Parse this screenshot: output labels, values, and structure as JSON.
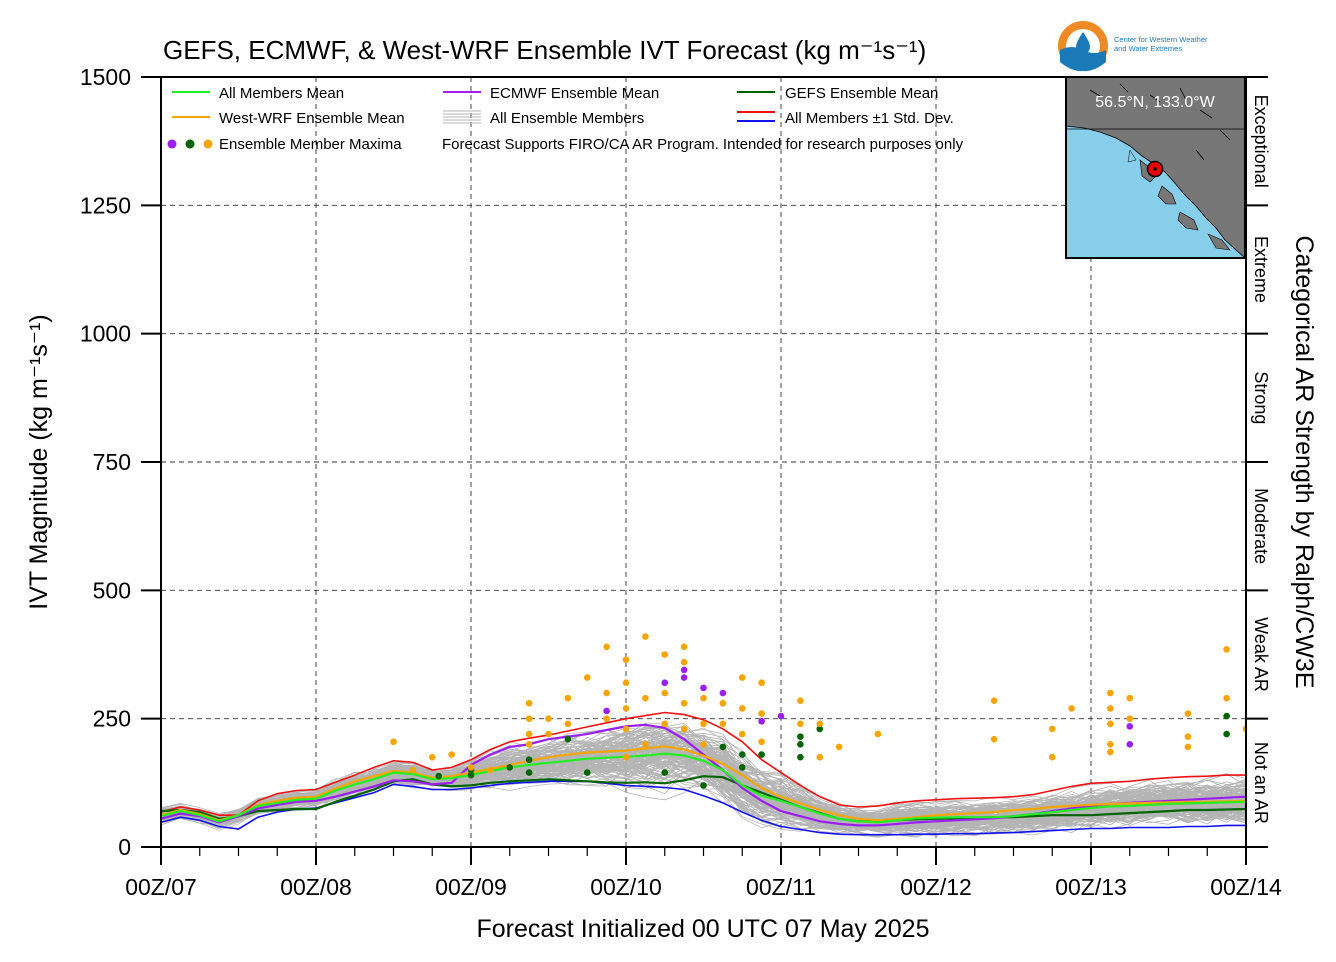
{
  "colors": {
    "all_mean": "#22ee22",
    "west_wrf": "#f5a400",
    "ecmwf": "#9b1ff0",
    "gefs": "#006400",
    "std_upper": "#ee1111",
    "std_lower": "#1111ee",
    "members": "#b4b4b4",
    "map_ocean": "#87ceeb",
    "map_land": "#777777",
    "logo_ring": "#f08a24",
    "logo_blue": "#1a7ab8"
  },
  "logo": {
    "line1": "Center for Western Weather",
    "line2": "and Water Extremes"
  },
  "map": {
    "location_label": "56.5°N, 133.0°W"
  },
  "legend": {
    "all_mean": "All Members Mean",
    "ecmwf": "ECMWF Ensemble Mean",
    "gefs": "GEFS Ensemble Mean",
    "west_wrf": "West-WRF Ensemble Mean",
    "members": "All Ensemble Members",
    "std": "All Members ±1 Std. Dev.",
    "maxima": "Ensemble Member Maxima",
    "note": "Forecast Supports FIRO/CA AR Program. Intended for research purposes only"
  },
  "chart_data": {
    "type": "line",
    "title": "GEFS, ECMWF, & West-WRF Ensemble IVT Forecast (kg m⁻¹s⁻¹)",
    "xlabel": "Forecast Initialized 00 UTC 07 May 2025",
    "ylabel": "IVT Magnitude (kg m⁻¹s⁻¹)",
    "right_label": "Categorical AR Strength by Ralph/CW3E",
    "xlim_hours": [
      0,
      168
    ],
    "ylim": [
      0,
      1500
    ],
    "x_tick_hours": [
      0,
      24,
      48,
      72,
      96,
      120,
      144,
      168
    ],
    "x_tick_labels": [
      "00Z/07",
      "00Z/08",
      "00Z/09",
      "00Z/10",
      "00Z/11",
      "00Z/12",
      "00Z/13",
      "00Z/14"
    ],
    "y_ticks": [
      0,
      250,
      500,
      750,
      1000,
      1250,
      1500
    ],
    "grid": true,
    "legend_position": "top-left",
    "categories": [
      {
        "label": "Not an AR",
        "range": [
          0,
          250
        ]
      },
      {
        "label": "Weak AR",
        "range": [
          250,
          500
        ]
      },
      {
        "label": "Moderate",
        "range": [
          500,
          750
        ]
      },
      {
        "label": "Strong",
        "range": [
          750,
          1000
        ]
      },
      {
        "label": "Extreme",
        "range": [
          1000,
          1250
        ]
      },
      {
        "label": "Exceptional",
        "range": [
          1250,
          1500
        ]
      }
    ],
    "x": [
      0,
      3,
      6,
      9,
      12,
      15,
      18,
      21,
      24,
      27,
      30,
      33,
      36,
      39,
      42,
      45,
      48,
      51,
      54,
      57,
      60,
      63,
      66,
      69,
      72,
      75,
      78,
      81,
      84,
      87,
      90,
      93,
      96,
      99,
      102,
      105,
      108,
      111,
      114,
      117,
      120,
      123,
      126,
      129,
      132,
      135,
      138,
      141,
      144,
      147,
      150,
      153,
      156,
      159,
      162,
      165,
      168
    ],
    "series": [
      {
        "name": "All Members Mean",
        "key": "all_mean",
        "values": [
          60,
          70,
          62,
          50,
          62,
          80,
          86,
          92,
          94,
          110,
          122,
          132,
          145,
          142,
          132,
          134,
          140,
          148,
          155,
          160,
          164,
          168,
          172,
          174,
          176,
          178,
          182,
          178,
          168,
          150,
          120,
          100,
          90,
          78,
          65,
          55,
          50,
          48,
          52,
          56,
          57,
          58,
          58,
          58,
          60,
          64,
          68,
          72,
          76,
          79,
          80,
          82,
          84,
          85,
          86,
          87,
          88
        ]
      },
      {
        "name": "West-WRF Ensemble Mean",
        "key": "west_wrf",
        "values": [
          62,
          72,
          64,
          52,
          62,
          82,
          90,
          96,
          98,
          114,
          128,
          138,
          148,
          145,
          135,
          138,
          145,
          152,
          160,
          168,
          175,
          180,
          184,
          186,
          188,
          192,
          196,
          190,
          178,
          162,
          140,
          115,
          98,
          85,
          72,
          62,
          55,
          52,
          55,
          58,
          62,
          64,
          66,
          68,
          72,
          74,
          78,
          80,
          82,
          84,
          85,
          86,
          87,
          88,
          88,
          89,
          90
        ]
      },
      {
        "name": "ECMWF Ensemble Mean",
        "key": "ecmwf",
        "values": [
          55,
          65,
          60,
          48,
          60,
          75,
          82,
          88,
          90,
          98,
          108,
          118,
          130,
          128,
          122,
          125,
          160,
          180,
          195,
          200,
          210,
          215,
          220,
          228,
          235,
          238,
          232,
          210,
          180,
          150,
          115,
          90,
          70,
          60,
          50,
          45,
          42,
          42,
          45,
          48,
          50,
          52,
          54,
          56,
          60,
          64,
          70,
          75,
          80,
          84,
          86,
          88,
          90,
          92,
          94,
          96,
          98
        ]
      },
      {
        "name": "GEFS Ensemble Mean",
        "key": "gefs",
        "values": [
          70,
          72,
          68,
          55,
          60,
          70,
          72,
          74,
          74,
          88,
          100,
          112,
          128,
          132,
          122,
          118,
          120,
          125,
          128,
          130,
          132,
          130,
          128,
          126,
          125,
          126,
          124,
          130,
          138,
          136,
          120,
          106,
          92,
          78,
          66,
          55,
          50,
          50,
          52,
          54,
          55,
          56,
          57,
          58,
          58,
          60,
          62,
          62,
          62,
          64,
          66,
          68,
          70,
          72,
          72,
          73,
          74
        ]
      },
      {
        "name": "All Members +1 Std. Dev.",
        "key": "std_upper",
        "values": [
          68,
          78,
          72,
          62,
          62,
          90,
          104,
          110,
          112,
          126,
          140,
          155,
          168,
          165,
          150,
          155,
          170,
          190,
          205,
          212,
          218,
          226,
          234,
          242,
          250,
          256,
          262,
          258,
          248,
          230,
          205,
          170,
          145,
          120,
          98,
          82,
          78,
          80,
          86,
          90,
          92,
          94,
          95,
          96,
          98,
          102,
          110,
          118,
          124,
          126,
          128,
          132,
          135,
          137,
          138,
          140,
          140
        ]
      },
      {
        "name": "All Members -1 Std. Dev.",
        "key": "std_lower",
        "values": [
          48,
          58,
          52,
          40,
          35,
          58,
          68,
          74,
          76,
          86,
          96,
          106,
          122,
          118,
          112,
          112,
          115,
          120,
          124,
          126,
          128,
          128,
          128,
          124,
          120,
          118,
          116,
          112,
          100,
          86,
          68,
          52,
          40,
          34,
          28,
          25,
          24,
          24,
          24,
          25,
          25,
          26,
          26,
          27,
          28,
          30,
          32,
          34,
          36,
          36,
          38,
          38,
          38,
          40,
          40,
          42,
          42
        ]
      }
    ],
    "maxima": [
      {
        "x": 43,
        "y": 138,
        "c": "gefs"
      },
      {
        "x": 48,
        "y": 150,
        "c": "gefs"
      },
      {
        "x": 48,
        "y": 140,
        "c": "gefs"
      },
      {
        "x": 54,
        "y": 155,
        "c": "gefs"
      },
      {
        "x": 57,
        "y": 145,
        "c": "gefs"
      },
      {
        "x": 57,
        "y": 170,
        "c": "gefs"
      },
      {
        "x": 63,
        "y": 210,
        "c": "gefs"
      },
      {
        "x": 66,
        "y": 145,
        "c": "gefs"
      },
      {
        "x": 78,
        "y": 145,
        "c": "gefs"
      },
      {
        "x": 84,
        "y": 120,
        "c": "gefs"
      },
      {
        "x": 87,
        "y": 195,
        "c": "gefs"
      },
      {
        "x": 90,
        "y": 155,
        "c": "gefs"
      },
      {
        "x": 90,
        "y": 180,
        "c": "gefs"
      },
      {
        "x": 93,
        "y": 180,
        "c": "gefs"
      },
      {
        "x": 99,
        "y": 215,
        "c": "gefs"
      },
      {
        "x": 99,
        "y": 200,
        "c": "gefs"
      },
      {
        "x": 99,
        "y": 175,
        "c": "gefs"
      },
      {
        "x": 102,
        "y": 230,
        "c": "gefs"
      },
      {
        "x": 165,
        "y": 255,
        "c": "gefs"
      },
      {
        "x": 165,
        "y": 220,
        "c": "gefs"
      },
      {
        "x": 69,
        "y": 265,
        "c": "ecmwf"
      },
      {
        "x": 78,
        "y": 320,
        "c": "ecmwf"
      },
      {
        "x": 81,
        "y": 345,
        "c": "ecmwf"
      },
      {
        "x": 81,
        "y": 330,
        "c": "ecmwf"
      },
      {
        "x": 84,
        "y": 310,
        "c": "ecmwf"
      },
      {
        "x": 87,
        "y": 300,
        "c": "ecmwf"
      },
      {
        "x": 93,
        "y": 245,
        "c": "ecmwf"
      },
      {
        "x": 96,
        "y": 255,
        "c": "ecmwf"
      },
      {
        "x": 150,
        "y": 235,
        "c": "ecmwf"
      },
      {
        "x": 150,
        "y": 200,
        "c": "ecmwf"
      },
      {
        "x": 36,
        "y": 205,
        "c": "west_wrf"
      },
      {
        "x": 39,
        "y": 150,
        "c": "west_wrf"
      },
      {
        "x": 42,
        "y": 175,
        "c": "west_wrf"
      },
      {
        "x": 45,
        "y": 180,
        "c": "west_wrf"
      },
      {
        "x": 48,
        "y": 155,
        "c": "west_wrf"
      },
      {
        "x": 51,
        "y": 150,
        "c": "west_wrf"
      },
      {
        "x": 57,
        "y": 280,
        "c": "west_wrf"
      },
      {
        "x": 57,
        "y": 250,
        "c": "west_wrf"
      },
      {
        "x": 57,
        "y": 220,
        "c": "west_wrf"
      },
      {
        "x": 57,
        "y": 200,
        "c": "west_wrf"
      },
      {
        "x": 60,
        "y": 250,
        "c": "west_wrf"
      },
      {
        "x": 60,
        "y": 220,
        "c": "west_wrf"
      },
      {
        "x": 63,
        "y": 290,
        "c": "west_wrf"
      },
      {
        "x": 63,
        "y": 240,
        "c": "west_wrf"
      },
      {
        "x": 66,
        "y": 330,
        "c": "west_wrf"
      },
      {
        "x": 69,
        "y": 390,
        "c": "west_wrf"
      },
      {
        "x": 69,
        "y": 300,
        "c": "west_wrf"
      },
      {
        "x": 69,
        "y": 250,
        "c": "west_wrf"
      },
      {
        "x": 72,
        "y": 365,
        "c": "west_wrf"
      },
      {
        "x": 72,
        "y": 320,
        "c": "west_wrf"
      },
      {
        "x": 72,
        "y": 270,
        "c": "west_wrf"
      },
      {
        "x": 72,
        "y": 230,
        "c": "west_wrf"
      },
      {
        "x": 72,
        "y": 175,
        "c": "west_wrf"
      },
      {
        "x": 75,
        "y": 410,
        "c": "west_wrf"
      },
      {
        "x": 75,
        "y": 290,
        "c": "west_wrf"
      },
      {
        "x": 75,
        "y": 200,
        "c": "west_wrf"
      },
      {
        "x": 78,
        "y": 375,
        "c": "west_wrf"
      },
      {
        "x": 78,
        "y": 300,
        "c": "west_wrf"
      },
      {
        "x": 78,
        "y": 240,
        "c": "west_wrf"
      },
      {
        "x": 81,
        "y": 390,
        "c": "west_wrf"
      },
      {
        "x": 81,
        "y": 360,
        "c": "west_wrf"
      },
      {
        "x": 81,
        "y": 280,
        "c": "west_wrf"
      },
      {
        "x": 81,
        "y": 230,
        "c": "west_wrf"
      },
      {
        "x": 84,
        "y": 290,
        "c": "west_wrf"
      },
      {
        "x": 84,
        "y": 240,
        "c": "west_wrf"
      },
      {
        "x": 84,
        "y": 200,
        "c": "west_wrf"
      },
      {
        "x": 87,
        "y": 280,
        "c": "west_wrf"
      },
      {
        "x": 87,
        "y": 240,
        "c": "west_wrf"
      },
      {
        "x": 90,
        "y": 330,
        "c": "west_wrf"
      },
      {
        "x": 90,
        "y": 270,
        "c": "west_wrf"
      },
      {
        "x": 90,
        "y": 220,
        "c": "west_wrf"
      },
      {
        "x": 93,
        "y": 320,
        "c": "west_wrf"
      },
      {
        "x": 93,
        "y": 260,
        "c": "west_wrf"
      },
      {
        "x": 93,
        "y": 205,
        "c": "west_wrf"
      },
      {
        "x": 99,
        "y": 285,
        "c": "west_wrf"
      },
      {
        "x": 99,
        "y": 240,
        "c": "west_wrf"
      },
      {
        "x": 102,
        "y": 240,
        "c": "west_wrf"
      },
      {
        "x": 102,
        "y": 175,
        "c": "west_wrf"
      },
      {
        "x": 105,
        "y": 195,
        "c": "west_wrf"
      },
      {
        "x": 111,
        "y": 220,
        "c": "west_wrf"
      },
      {
        "x": 129,
        "y": 285,
        "c": "west_wrf"
      },
      {
        "x": 129,
        "y": 210,
        "c": "west_wrf"
      },
      {
        "x": 138,
        "y": 230,
        "c": "west_wrf"
      },
      {
        "x": 138,
        "y": 175,
        "c": "west_wrf"
      },
      {
        "x": 141,
        "y": 270,
        "c": "west_wrf"
      },
      {
        "x": 147,
        "y": 300,
        "c": "west_wrf"
      },
      {
        "x": 147,
        "y": 270,
        "c": "west_wrf"
      },
      {
        "x": 147,
        "y": 240,
        "c": "west_wrf"
      },
      {
        "x": 147,
        "y": 200,
        "c": "west_wrf"
      },
      {
        "x": 147,
        "y": 185,
        "c": "west_wrf"
      },
      {
        "x": 150,
        "y": 290,
        "c": "west_wrf"
      },
      {
        "x": 150,
        "y": 250,
        "c": "west_wrf"
      },
      {
        "x": 159,
        "y": 260,
        "c": "west_wrf"
      },
      {
        "x": 159,
        "y": 215,
        "c": "west_wrf"
      },
      {
        "x": 159,
        "y": 195,
        "c": "west_wrf"
      },
      {
        "x": 165,
        "y": 385,
        "c": "west_wrf"
      },
      {
        "x": 165,
        "y": 290,
        "c": "west_wrf"
      },
      {
        "x": 168,
        "y": 230,
        "c": "west_wrf"
      }
    ]
  }
}
